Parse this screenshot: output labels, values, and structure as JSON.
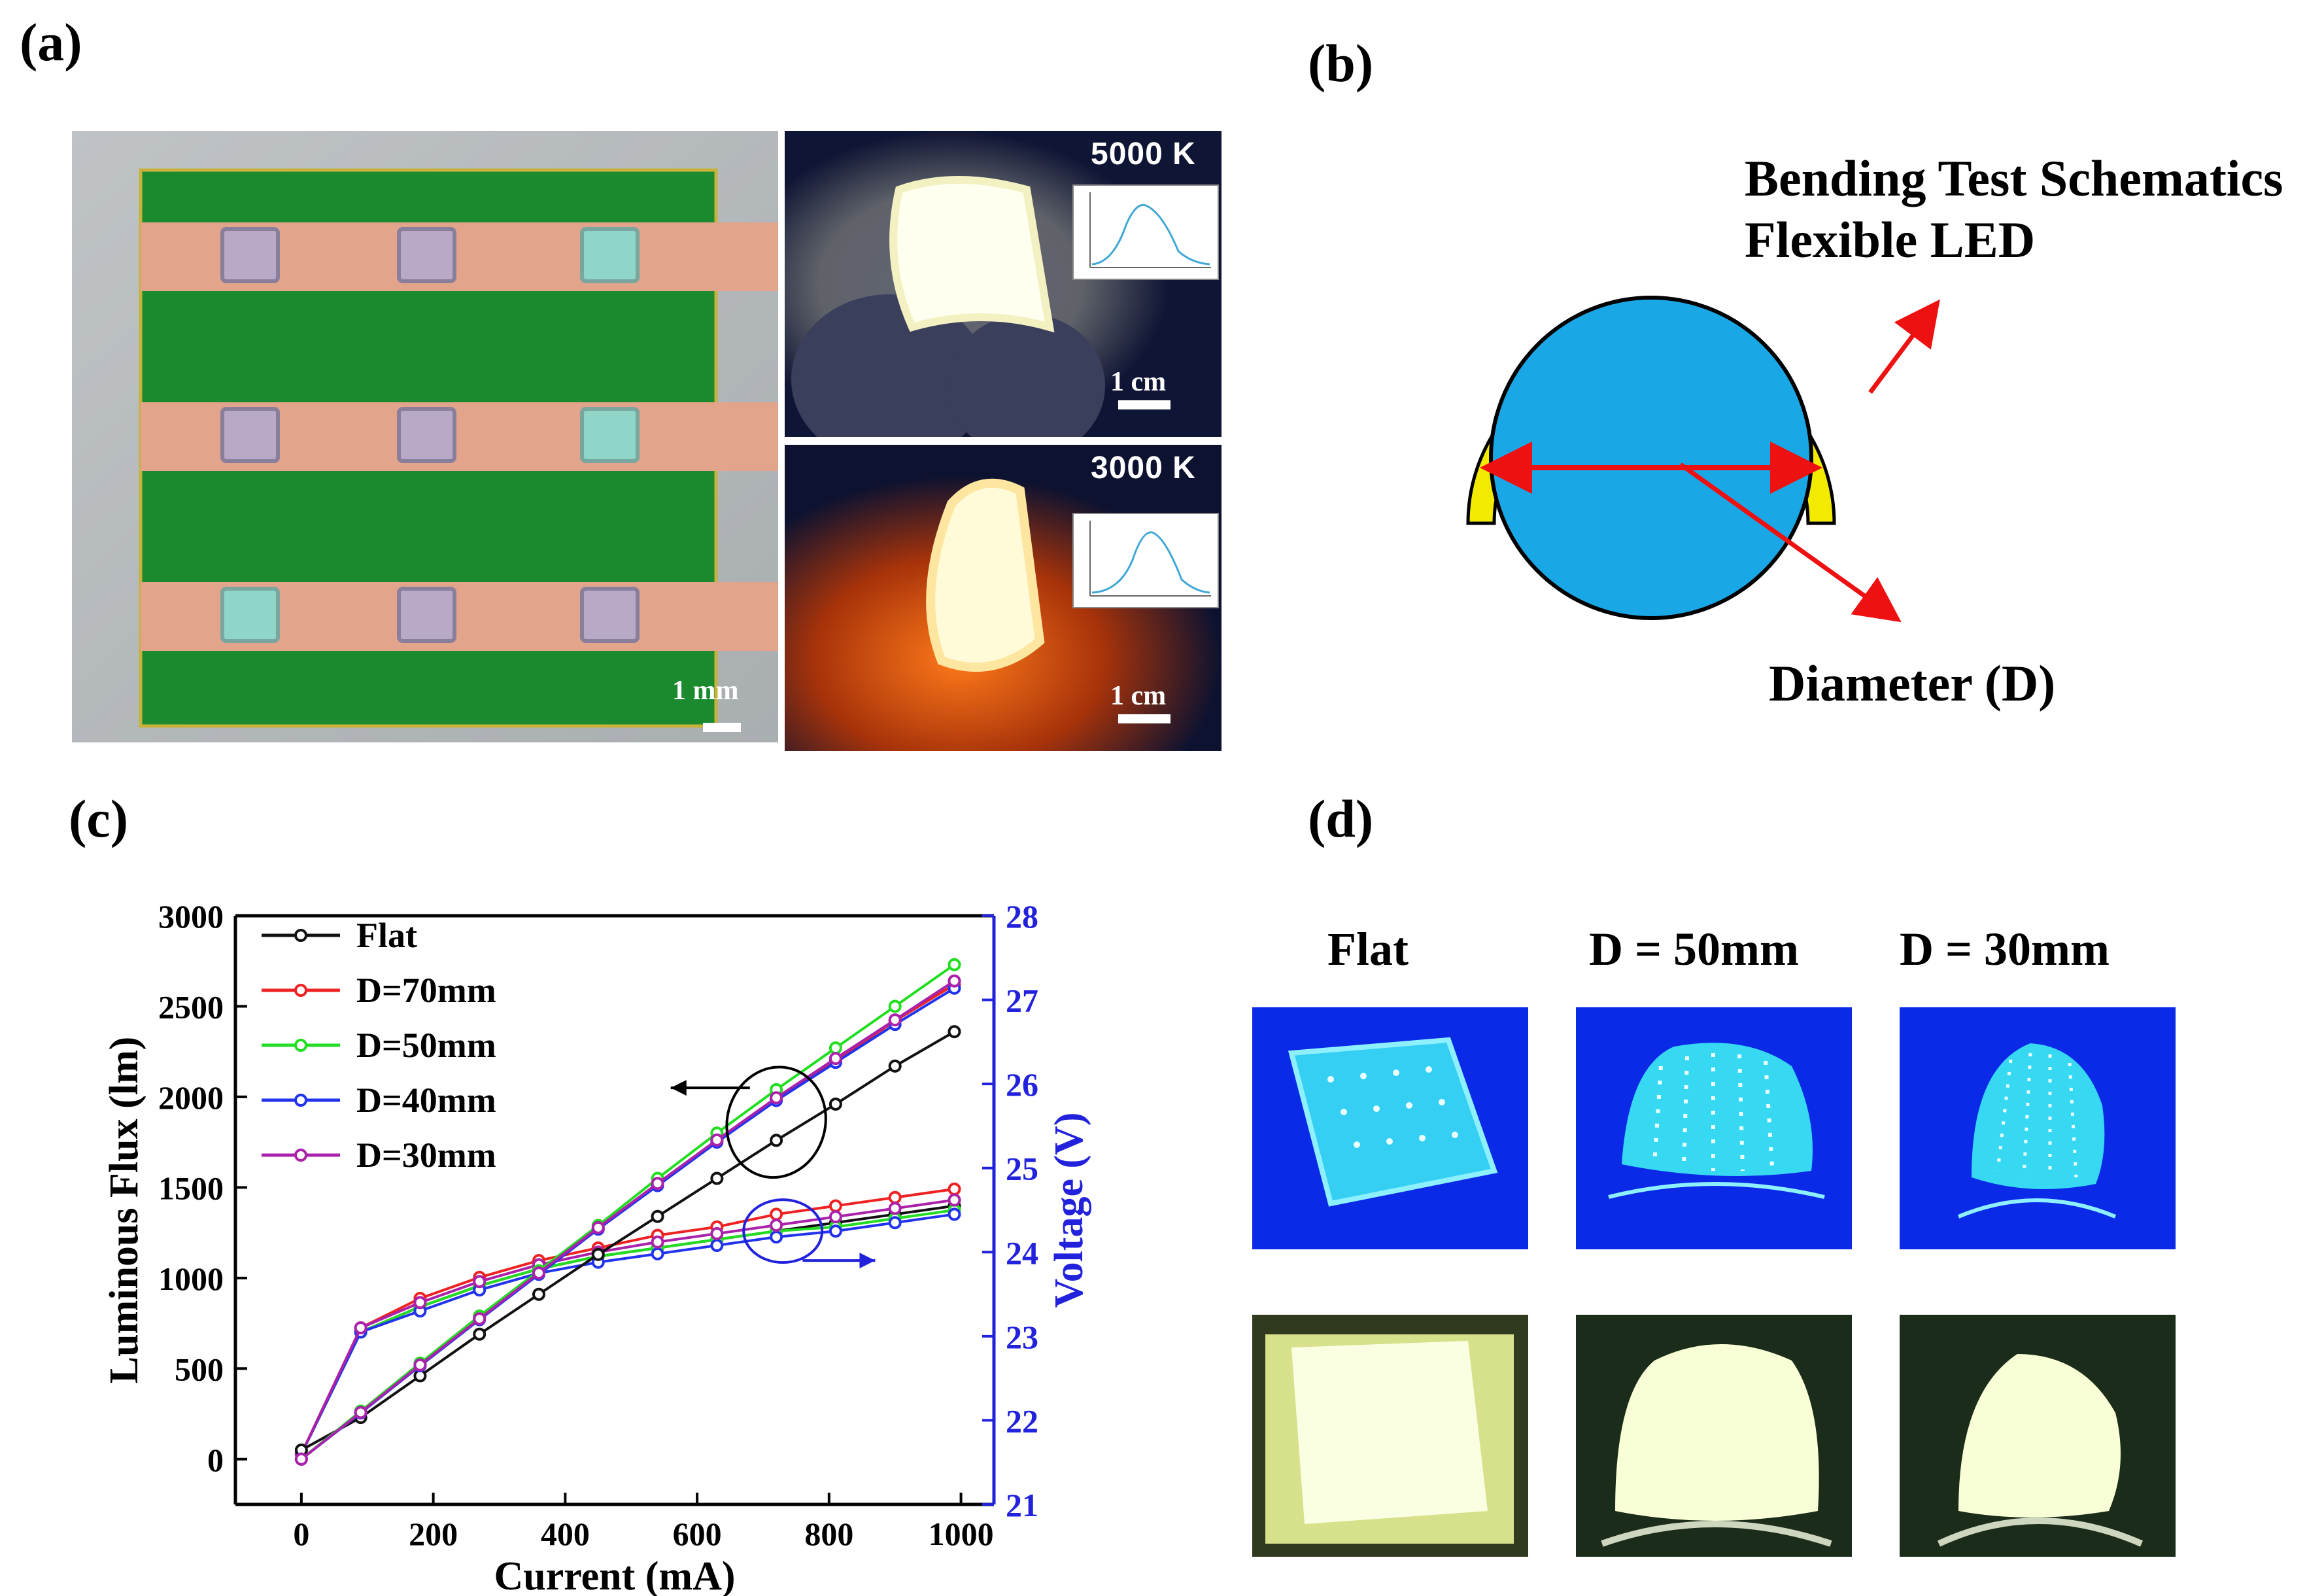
{
  "panel_labels": {
    "a": "(a)",
    "b": "(b)",
    "c": "(c)",
    "d": "(d)"
  },
  "panel_a": {
    "scale_chip": "1 mm",
    "scale_top": "1 cm",
    "scale_bottom": "1 cm",
    "temp_top": "5000 K",
    "temp_bottom": "3000 K"
  },
  "panel_b": {
    "title_line1": "Bending Test Schematics",
    "title_line2": "Flexible LED",
    "diameter_label": "Diameter (D)",
    "colors": {
      "cylinder": "#1aa7e6",
      "led": "#f2ea00",
      "arrow": "#ee1111"
    }
  },
  "panel_d": {
    "captions": [
      "Flat",
      "D = 50mm",
      "D = 30mm"
    ]
  },
  "chart_data": {
    "type": "line",
    "xlabel": "Current (mA)",
    "ylabel": "Luminous Flux (lm)",
    "y2label": "Voltage (V)",
    "xlim": [
      -100,
      1050
    ],
    "ylim": [
      -250,
      3000
    ],
    "y2lim": [
      21,
      28
    ],
    "xticks": [
      "0",
      "200",
      "400",
      "600",
      "800",
      "1000"
    ],
    "yticks": [
      "0",
      "500",
      "1000",
      "1500",
      "2000",
      "2500",
      "3000"
    ],
    "y2ticks": [
      "21",
      "22",
      "23",
      "24",
      "25",
      "26",
      "27",
      "28"
    ],
    "x": [
      0,
      90,
      180,
      270,
      360,
      450,
      540,
      630,
      720,
      810,
      900,
      990
    ],
    "flux_series": [
      {
        "name": "Flat",
        "color": "#111111",
        "values": [
          50,
          230,
          460,
          690,
          910,
          1130,
          1340,
          1550,
          1760,
          1960,
          2170,
          2360
        ]
      },
      {
        "name": "D=70mm",
        "color": "#ee2222",
        "values": [
          0,
          260,
          520,
          780,
          1030,
          1270,
          1520,
          1760,
          1990,
          2200,
          2420,
          2620
        ]
      },
      {
        "name": "D=50mm",
        "color": "#22dd22",
        "values": [
          0,
          265,
          530,
          790,
          1040,
          1290,
          1550,
          1800,
          2040,
          2270,
          2500,
          2730
        ]
      },
      {
        "name": "D=40mm",
        "color": "#2233ee",
        "values": [
          0,
          255,
          515,
          770,
          1020,
          1270,
          1510,
          1750,
          1980,
          2190,
          2400,
          2600
        ]
      },
      {
        "name": "D=30mm",
        "color": "#aa22aa",
        "values": [
          0,
          258,
          520,
          775,
          1028,
          1278,
          1522,
          1762,
          1995,
          2212,
          2425,
          2640
        ]
      }
    ],
    "voltage_series": [
      {
        "name": "Flat",
        "color": "#111111",
        "values": [
          21.6,
          23.05,
          23.35,
          23.6,
          23.8,
          23.95,
          24.05,
          24.15,
          24.25,
          24.35,
          24.45,
          24.55
        ]
      },
      {
        "name": "D=70mm",
        "color": "#ee2222",
        "values": [
          21.6,
          23.1,
          23.45,
          23.7,
          23.9,
          24.05,
          24.2,
          24.3,
          24.45,
          24.55,
          24.65,
          24.75
        ]
      },
      {
        "name": "D=50mm",
        "color": "#22dd22",
        "values": [
          21.6,
          23.05,
          23.35,
          23.6,
          23.8,
          23.95,
          24.05,
          24.15,
          24.25,
          24.3,
          24.4,
          24.5
        ]
      },
      {
        "name": "D=40mm",
        "color": "#2233ee",
        "values": [
          21.6,
          23.05,
          23.3,
          23.55,
          23.75,
          23.88,
          23.98,
          24.08,
          24.18,
          24.25,
          24.35,
          24.45
        ]
      },
      {
        "name": "D=30mm",
        "color": "#aa22aa",
        "values": [
          21.6,
          23.1,
          23.4,
          23.65,
          23.85,
          24.0,
          24.12,
          24.22,
          24.32,
          24.42,
          24.52,
          24.62
        ]
      }
    ],
    "annotations": [
      "arrow-left from flux ellipse",
      "arrow-right from voltage ellipse"
    ]
  }
}
